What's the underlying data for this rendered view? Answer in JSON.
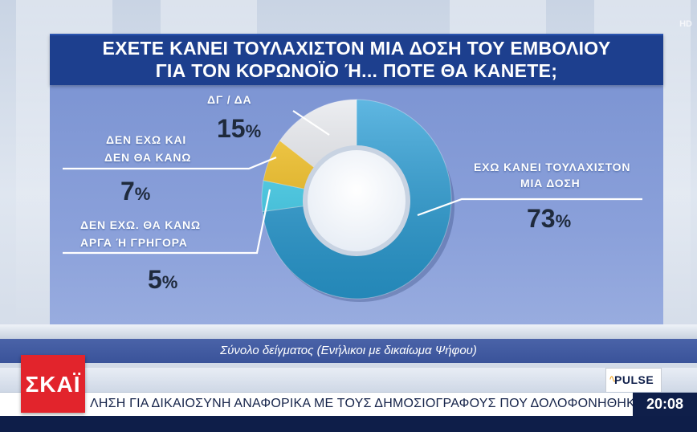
{
  "corner_mark": "HD",
  "title": {
    "line1": "ΕΧΕΤΕ ΚΑΝΕΙ ΤΟΥΛΑΧΙΣΤΟΝ ΜΙΑ ΔΟΣΗ ΤΟΥ ΕΜΒΟΛΙΟΥ",
    "line2": "ΓΙΑ ΤΟΝ ΚΟΡΩΝΟΪΟ Ή... ΠΟΤΕ ΘΑ ΚΑΝΕΤΕ;"
  },
  "chart_data": {
    "type": "pie",
    "style": "donut",
    "title": "ΕΧΕΤΕ ΚΑΝΕΙ ΤΟΥΛΑΧΙΣΤΟΝ ΜΙΑ ΔΟΣΗ ΤΟΥ ΕΜΒΟΛΙΟΥ ΓΙΑ ΤΟΝ ΚΟΡΩΝΟΪΟ Ή... ΠΟΤΕ ΘΑ ΚΑΝΕΤΕ;",
    "slices": [
      {
        "label_lines": [
          "ΕΧΩ ΚΑΝΕΙ ΤΟΥΛΑΧΙΣΤΟΝ",
          "ΜΙΑ ΔΟΣΗ"
        ],
        "value": 73,
        "color": "#2a9fd8"
      },
      {
        "label_lines": [
          "ΔΕΝ ΕΧΩ. ΘΑ ΚΑΝΩ",
          "ΑΡΓΑ Ή ΓΡΗΓΟΡΑ"
        ],
        "value": 5,
        "color": "#3fd3f2"
      },
      {
        "label_lines": [
          "ΔΕΝ ΕΧΩ ΚΑΙ",
          "ΔΕΝ ΘΑ ΚΑΝΩ"
        ],
        "value": 7,
        "color": "#f7c21c"
      },
      {
        "label_lines": [
          "ΔΓ / ΔΑ"
        ],
        "value": 15,
        "color": "#e6e8ed"
      }
    ],
    "value_suffix": "%"
  },
  "sample_note": "Σύνολο δείγματος (Ενήλικοι με δικαίωμα Ψήφου)",
  "logo": {
    "text": "ΣΚΑΪ",
    "color": "#e2242c"
  },
  "pulse_logo": "PULSE",
  "ticker": {
    "text": "ΛΗΣΗ ΓΙΑ ΔΙΚΑΙΟΣΥΝΗ ΑΝΑΦΟΡΙΚΑ ΜΕ ΤΟΥΣ ΔΗΜΟΣΙΟΓΡΑΦΟΥΣ ΠΟΥ ΔΟΛΟΦΟΝΗΘΗΚΑΝ  ΚΑΙ",
    "time": "20:08"
  }
}
